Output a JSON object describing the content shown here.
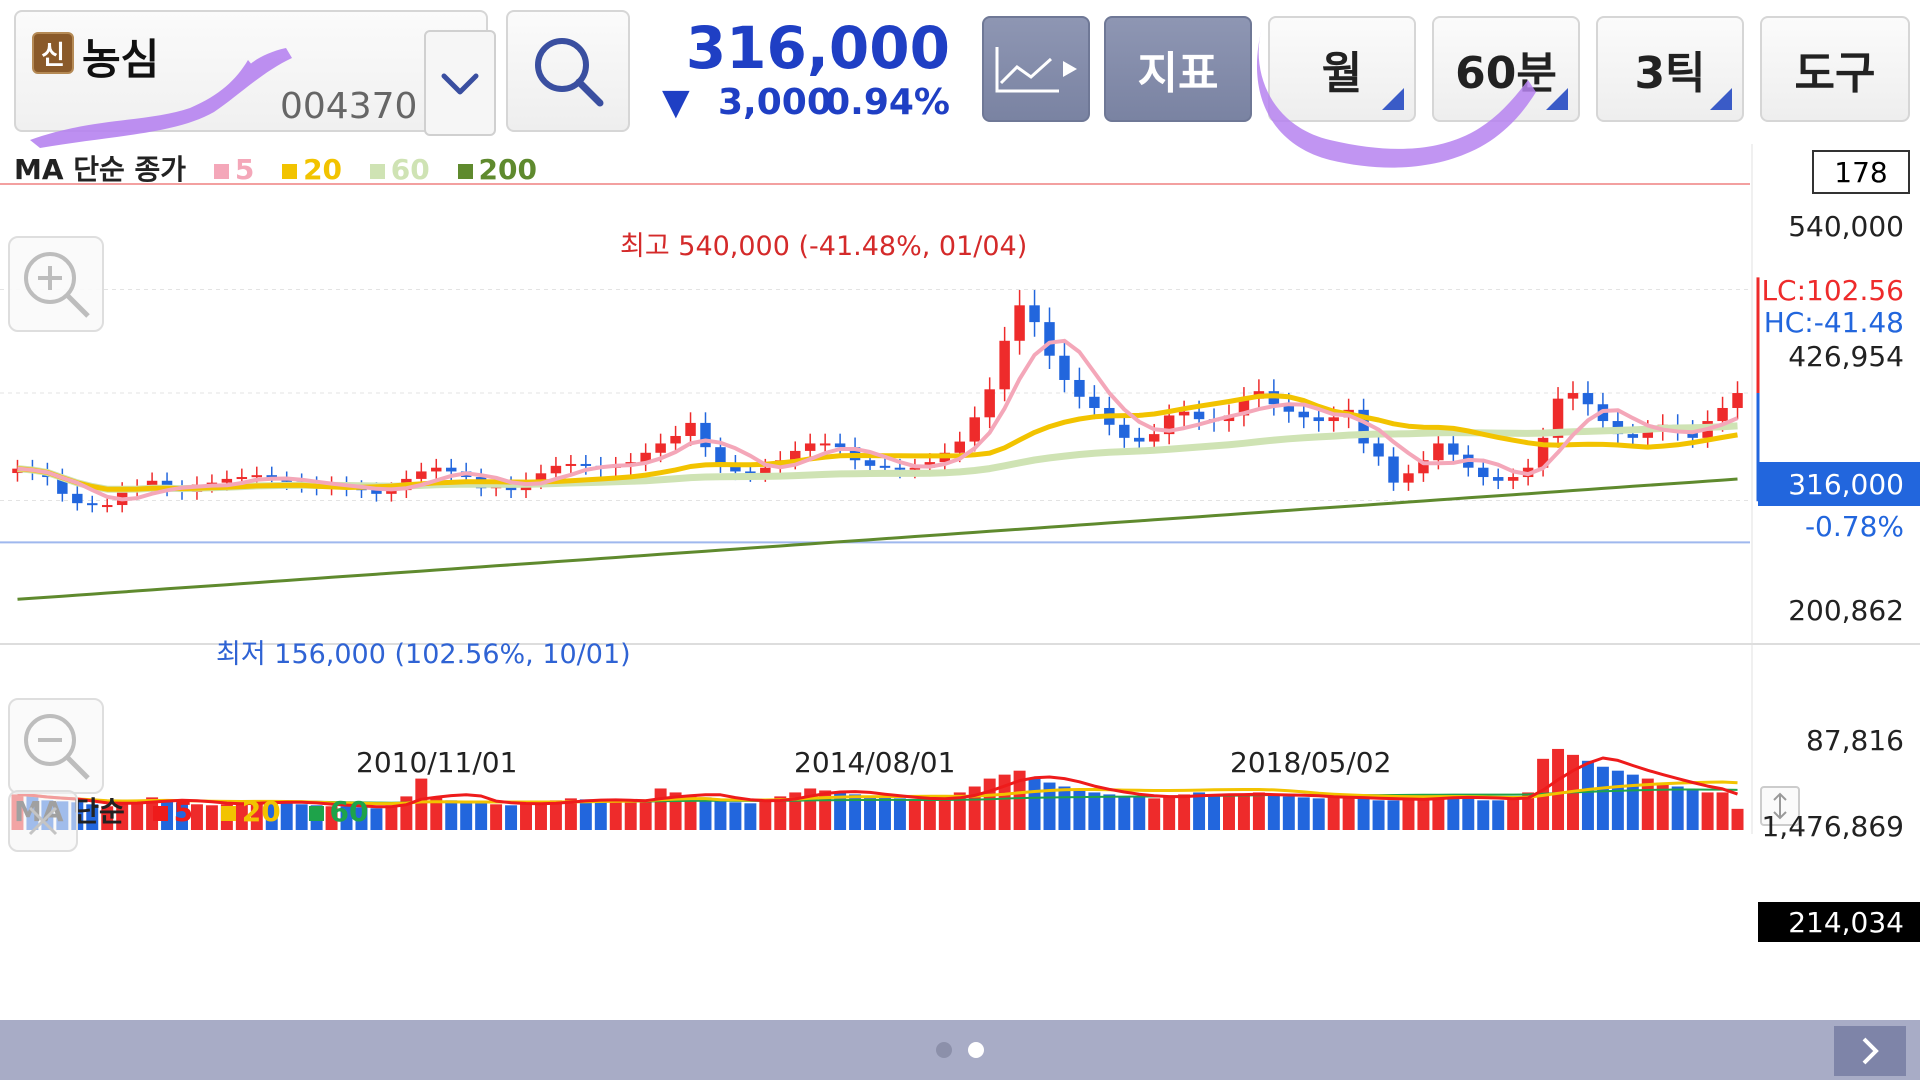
{
  "stock": {
    "badge": "신",
    "name": "농심",
    "code": "004370",
    "price": "316,000",
    "change_arrow": "▼",
    "change_amount": "3,000",
    "change_pct": "0.94%"
  },
  "toolbar": {
    "indicator_label": "지표",
    "period_month": "월",
    "period_60m": "60분",
    "tick_3": "3틱",
    "tools_label": "도구"
  },
  "price_panel": {
    "legend_title": "MA 단순 종가",
    "legend_items": [
      {
        "label": "5",
        "color": "#f4a7b9"
      },
      {
        "label": "20",
        "color": "#f2c300"
      },
      {
        "label": "60",
        "color": "#cfe3b4"
      },
      {
        "label": "200",
        "color": "#5f8a2e"
      }
    ],
    "count_box": "178",
    "max_annotation": "최고 540,000 (-41.48%, 01/04)",
    "min_annotation": "최저 156,000 (102.56%, 10/01)",
    "lc_label": "LC:102.56",
    "hc_label": "HC:-41.48",
    "current_price_tag": "316,000",
    "current_change_tag": "-0.78%",
    "y_ticks": [
      "540,000",
      "426,954",
      "200,862",
      "87,816"
    ],
    "x_ticks": [
      "2010/11/01",
      "2014/08/01",
      "2018/05/02"
    ]
  },
  "volume_panel": {
    "legend_title": "MA 단순",
    "legend_items": [
      {
        "label": "5",
        "color": "#ee1b1b"
      },
      {
        "label": "20",
        "color": "#f2c300"
      },
      {
        "label": "60",
        "color": "#1ea34a"
      }
    ],
    "y_top": "1,476,869",
    "current_volume_tag": "214,034"
  },
  "colors": {
    "up": "#ee2b2b",
    "down": "#2266dd",
    "accent": "#1f3fc4",
    "toolbar_dark": "#7a83a2"
  },
  "chart_data": {
    "type": "candlestick",
    "ylim": [
      87816,
      540000
    ],
    "ma_periods": [
      5,
      20,
      60,
      200
    ],
    "close_series": [
      235000,
      232000,
      226000,
      208000,
      198000,
      196000,
      196000,
      212000,
      215000,
      222000,
      214000,
      210000,
      218000,
      220000,
      224000,
      226000,
      228000,
      223000,
      221000,
      218000,
      215000,
      218000,
      214000,
      212000,
      208000,
      212000,
      224000,
      232000,
      236000,
      232000,
      226000,
      214000,
      218000,
      212000,
      222000,
      230000,
      238000,
      240000,
      238000,
      236000,
      238000,
      242000,
      252000,
      262000,
      270000,
      284000,
      258000,
      240000,
      232000,
      230000,
      236000,
      244000,
      254000,
      262000,
      262000,
      258000,
      244000,
      238000,
      236000,
      234000,
      236000,
      242000,
      252000,
      264000,
      290000,
      320000,
      372000,
      410000,
      392000,
      356000,
      330000,
      312000,
      300000,
      282000,
      268000,
      264000,
      272000,
      292000,
      296000,
      288000,
      286000,
      292000,
      310000,
      318000,
      304000,
      296000,
      290000,
      286000,
      290000,
      298000,
      262000,
      248000,
      220000,
      230000,
      244000,
      262000,
      250000,
      236000,
      226000,
      222000,
      226000,
      236000,
      268000,
      310000,
      316000,
      304000,
      286000,
      272000,
      268000,
      276000,
      282000,
      276000,
      268000,
      286000,
      300000,
      316000
    ],
    "volume_series": [
      360000,
      340000,
      300000,
      290000,
      280000,
      260000,
      240000,
      280000,
      300000,
      330000,
      310000,
      280000,
      260000,
      250000,
      260000,
      280000,
      300000,
      290000,
      270000,
      260000,
      250000,
      240000,
      240000,
      230000,
      220000,
      250000,
      340000,
      520000,
      330000,
      300000,
      290000,
      280000,
      260000,
      250000,
      260000,
      280000,
      300000,
      320000,
      310000,
      300000,
      290000,
      280000,
      300000,
      420000,
      380000,
      350000,
      330000,
      300000,
      280000,
      270000,
      300000,
      340000,
      380000,
      420000,
      400000,
      380000,
      360000,
      340000,
      330000,
      320000,
      310000,
      300000,
      320000,
      380000,
      440000,
      520000,
      560000,
      600000,
      520000,
      480000,
      440000,
      400000,
      380000,
      360000,
      340000,
      330000,
      320000,
      340000,
      360000,
      380000,
      360000,
      340000,
      350000,
      380000,
      360000,
      340000,
      330000,
      320000,
      330000,
      340000,
      320000,
      300000,
      300000,
      310000,
      320000,
      360000,
      340000,
      320000,
      300000,
      300000,
      320000,
      380000,
      720000,
      820000,
      760000,
      700000,
      640000,
      600000,
      560000,
      520000,
      480000,
      440000,
      400000,
      380000,
      380000,
      214034
    ]
  }
}
